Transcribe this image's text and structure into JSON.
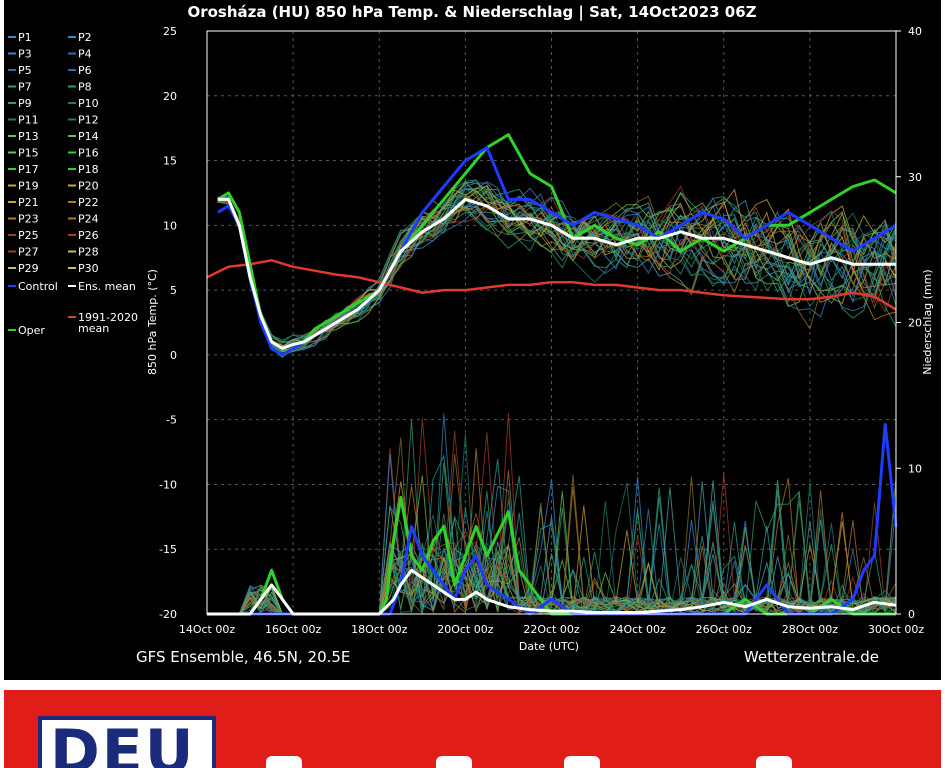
{
  "chart_data": {
    "type": "line",
    "title": "Orosháza  (HU)  850 hPa Temp. & Niederschlag | Sat, 14Oct2023 06Z",
    "ylabel_left": "850 hPa Temp. (°C)",
    "ylabel_right": "Niederschlag (mm)",
    "xlabel": "Date (UTC)",
    "ylim_left": [
      -20,
      25
    ],
    "ylim_right": [
      0,
      40
    ],
    "yticks_left": [
      "25",
      "20",
      "15",
      "10",
      "5",
      "0",
      "-5",
      "-10",
      "-15",
      "-20"
    ],
    "yticks_right": [
      "40",
      "30",
      "20",
      "10",
      "0"
    ],
    "xlim_hours": [
      0,
      384
    ],
    "xticks": [
      "14Oct 00z",
      "16Oct 00z",
      "18Oct 00z",
      "20Oct 00z",
      "22Oct 00z",
      "24Oct 00z",
      "26Oct 00z",
      "28Oct 00z",
      "30Oct 00z"
    ],
    "legend": [
      "P1",
      "P2",
      "P3",
      "P4",
      "P5",
      "P6",
      "P7",
      "P8",
      "P9",
      "P10",
      "P11",
      "P12",
      "P13",
      "P14",
      "P15",
      "P16",
      "P17",
      "P18",
      "P19",
      "P20",
      "P21",
      "P22",
      "P23",
      "P24",
      "P25",
      "P26",
      "P27",
      "P28",
      "P29",
      "P30",
      "Control",
      "Ens. mean",
      "1991-2020 mean",
      "Oper"
    ],
    "legend_placement": "left",
    "footer_left": "GFS Ensemble, 46.5N, 20.5E",
    "footer_right": "Wetterzentrale.de",
    "grid": true,
    "series": [
      {
        "name": "Ens. mean",
        "color": "#ffffff",
        "axis": "left",
        "x": [
          6,
          12,
          18,
          24,
          30,
          36,
          42,
          48,
          54,
          60,
          72,
          84,
          96,
          108,
          120,
          132,
          144,
          156,
          162,
          168,
          180,
          192,
          204,
          216,
          228,
          240,
          252,
          264,
          276,
          288,
          300,
          312,
          324,
          336,
          348,
          360,
          372,
          384
        ],
        "y": [
          12,
          12,
          10,
          6,
          3,
          1,
          0.5,
          0.8,
          1,
          1.5,
          2.5,
          3.5,
          5,
          8,
          9.5,
          10.5,
          12,
          11.5,
          11,
          10.5,
          10.5,
          10,
          9,
          9,
          8.5,
          9,
          9,
          9.5,
          9,
          9,
          8.5,
          8,
          7.5,
          7,
          7.5,
          7,
          7,
          7
        ]
      },
      {
        "name": "1991-2020 mean",
        "color": "#e0392e",
        "axis": "left",
        "x": [
          0,
          12,
          24,
          36,
          48,
          60,
          72,
          84,
          96,
          108,
          120,
          132,
          144,
          156,
          168,
          180,
          192,
          204,
          216,
          228,
          240,
          252,
          264,
          276,
          288,
          300,
          312,
          324,
          336,
          348,
          360,
          372,
          384
        ],
        "y": [
          6,
          6.8,
          7,
          7.3,
          6.8,
          6.5,
          6.2,
          6,
          5.6,
          5.2,
          4.8,
          5,
          5,
          5.2,
          5.4,
          5.4,
          5.6,
          5.6,
          5.4,
          5.4,
          5.2,
          5,
          5,
          4.8,
          4.6,
          4.5,
          4.4,
          4.3,
          4.3,
          4.5,
          4.8,
          4.5,
          3.5
        ]
      },
      {
        "name": "Oper",
        "color": "#30d12a",
        "axis": "left",
        "x": [
          6,
          12,
          18,
          24,
          30,
          36,
          42,
          48,
          54,
          60,
          72,
          84,
          96,
          108,
          120,
          132,
          144,
          156,
          168,
          180,
          192,
          204,
          216,
          228,
          240,
          252,
          264,
          276,
          288,
          300,
          312,
          324,
          336,
          348,
          360,
          372,
          384
        ],
        "y": [
          12,
          12.5,
          11,
          7,
          3,
          0.5,
          0,
          0.5,
          1,
          2,
          3,
          4,
          5,
          8,
          10,
          12,
          14,
          16,
          17,
          14,
          13,
          9,
          10,
          9,
          8.5,
          9.5,
          8,
          9,
          8,
          9,
          10,
          10,
          11,
          12,
          13,
          13.5,
          12.5
        ]
      },
      {
        "name": "Control",
        "color": "#1e3cff",
        "axis": "left",
        "x": [
          6,
          12,
          18,
          24,
          30,
          36,
          42,
          48,
          54,
          60,
          72,
          84,
          96,
          108,
          120,
          132,
          144,
          156,
          168,
          180,
          192,
          204,
          216,
          228,
          240,
          252,
          264,
          276,
          288,
          300,
          312,
          324,
          336,
          348,
          360,
          372,
          384
        ],
        "y": [
          11,
          11.5,
          10,
          6,
          2.5,
          0.5,
          0,
          0.5,
          1,
          1.5,
          2.5,
          3.5,
          5,
          8,
          11,
          13,
          15,
          16,
          12,
          12,
          11,
          10,
          11,
          10.5,
          10,
          9,
          10,
          11,
          10.5,
          9,
          10,
          11,
          10,
          9,
          8,
          9,
          10
        ]
      },
      {
        "name": "Oper precipitation",
        "color": "#30d12a",
        "axis": "right",
        "x": [
          0,
          24,
          30,
          36,
          42,
          48,
          60,
          72,
          84,
          96,
          100,
          104,
          108,
          114,
          120,
          126,
          132,
          138,
          144,
          150,
          156,
          168,
          174,
          180,
          186,
          192,
          204,
          216,
          228,
          240,
          252,
          264,
          276,
          288,
          300,
          312,
          324,
          336,
          348,
          360,
          372,
          384
        ],
        "y": [
          0,
          0,
          1,
          3,
          1,
          0,
          0,
          0,
          0,
          0,
          1,
          5,
          8,
          4,
          3,
          5,
          6,
          2,
          4,
          6,
          4,
          7,
          3,
          2,
          1,
          0,
          0,
          0,
          0,
          0,
          0,
          0,
          0,
          0,
          1,
          0,
          0,
          0,
          1,
          0,
          0,
          0
        ]
      },
      {
        "name": "Control precipitation",
        "color": "#1e3cff",
        "axis": "right",
        "x": [
          0,
          24,
          30,
          36,
          48,
          60,
          72,
          84,
          96,
          102,
          108,
          114,
          120,
          126,
          132,
          138,
          144,
          150,
          156,
          168,
          180,
          192,
          204,
          216,
          228,
          240,
          252,
          264,
          276,
          288,
          300,
          312,
          324,
          336,
          348,
          360,
          366,
          372,
          378,
          384
        ],
        "y": [
          0,
          0,
          0,
          0,
          0,
          0,
          0,
          0,
          0,
          0,
          2,
          6,
          4,
          3,
          2,
          1,
          3,
          4,
          2,
          1,
          0,
          1,
          0,
          0,
          0,
          0,
          0,
          0,
          0,
          0,
          0,
          2,
          0,
          0,
          0,
          1,
          3,
          4,
          13,
          6
        ]
      },
      {
        "name": "Ens. mean precipitation",
        "color": "#ffffff",
        "axis": "right",
        "x": [
          0,
          24,
          30,
          36,
          42,
          48,
          60,
          72,
          84,
          96,
          104,
          108,
          114,
          120,
          126,
          132,
          138,
          144,
          150,
          156,
          168,
          180,
          192,
          204,
          216,
          228,
          240,
          252,
          264,
          276,
          288,
          300,
          312,
          324,
          336,
          348,
          360,
          372,
          384
        ],
        "y": [
          0,
          0,
          1,
          2,
          1,
          0,
          0,
          0,
          0,
          0,
          1,
          2,
          3,
          2.5,
          2,
          1.5,
          1,
          1,
          1.5,
          1,
          0.5,
          0.3,
          0.2,
          0.2,
          0.1,
          0.1,
          0.1,
          0.2,
          0.3,
          0.5,
          0.8,
          0.5,
          1,
          0.5,
          0.4,
          0.5,
          0.3,
          0.8,
          0.6
        ]
      }
    ]
  },
  "banner": {
    "logo_text": "DEU",
    "background": "#e01d19",
    "logo_color": "#1b2a7a"
  }
}
